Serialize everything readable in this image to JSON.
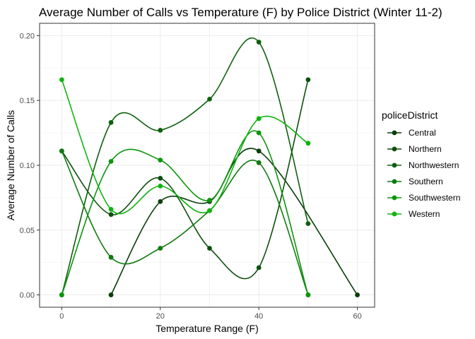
{
  "chart_data": {
    "type": "line",
    "title": "Average Number of Calls vs Temperature (F) by Police District (Winter 11-2)",
    "xlabel": "Temperature Range (F)",
    "ylabel": "Average Number of Calls",
    "xlim": [
      -4.5,
      63.5
    ],
    "ylim": [
      -0.0095,
      0.2095
    ],
    "x_ticks": [
      0,
      20,
      40,
      60
    ],
    "x_tick_labels": [
      "0",
      "20",
      "40",
      "60"
    ],
    "y_ticks": [
      0.0,
      0.05,
      0.1,
      0.15,
      0.2
    ],
    "y_tick_labels": [
      "0.00",
      "0.05",
      "0.10",
      "0.15",
      "0.20"
    ],
    "grid": true,
    "smoothed": true,
    "legend": {
      "title": "policeDistrict",
      "position": "right"
    },
    "series": [
      {
        "name": "Central",
        "color": "#0b3d0b",
        "points": [
          [
            10,
            0.0
          ],
          [
            20,
            0.072
          ],
          [
            30,
            0.072
          ],
          [
            40,
            0.111
          ],
          [
            60,
            0.0
          ]
        ]
      },
      {
        "name": "Northern",
        "color": "#0d4f0d",
        "points": [
          [
            0,
            0.111
          ],
          [
            10,
            0.062
          ],
          [
            20,
            0.09
          ],
          [
            30,
            0.036
          ],
          [
            40,
            0.021
          ],
          [
            50,
            0.166
          ]
        ]
      },
      {
        "name": "Northwestern",
        "color": "#0e600e",
        "points": [
          [
            0,
            0.0
          ],
          [
            10,
            0.133
          ],
          [
            20,
            0.127
          ],
          [
            30,
            0.151
          ],
          [
            40,
            0.195
          ],
          [
            50,
            0.055
          ]
        ]
      },
      {
        "name": "Southern",
        "color": "#0e7a0e",
        "points": [
          [
            0,
            0.111
          ],
          [
            10,
            0.029
          ],
          [
            20,
            0.036
          ],
          [
            30,
            0.065
          ],
          [
            40,
            0.102
          ],
          [
            50,
            0.0
          ]
        ]
      },
      {
        "name": "Southwestern",
        "color": "#0b950b",
        "points": [
          [
            0,
            0.0
          ],
          [
            10,
            0.103
          ],
          [
            20,
            0.104
          ],
          [
            30,
            0.073
          ],
          [
            40,
            0.125
          ],
          [
            50,
            0.0
          ]
        ]
      },
      {
        "name": "Western",
        "color": "#0fb30f",
        "points": [
          [
            0,
            0.166
          ],
          [
            10,
            0.066
          ],
          [
            20,
            0.084
          ],
          [
            30,
            0.065
          ],
          [
            40,
            0.136
          ],
          [
            50,
            0.117
          ]
        ]
      }
    ]
  }
}
